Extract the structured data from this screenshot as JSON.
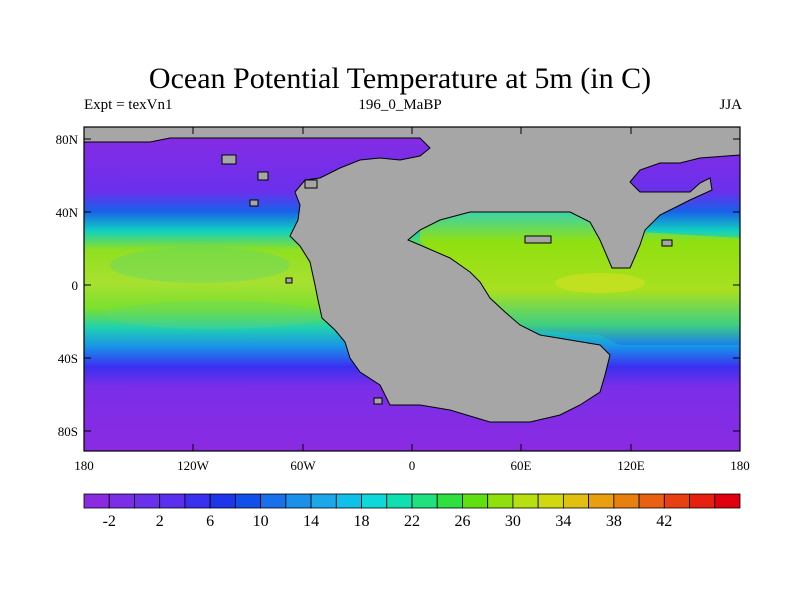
{
  "title": "Ocean Potential Temperature at 5m (in C)",
  "subtitle_left": "Expt = texVn1",
  "subtitle_center": "196_0_MaBP",
  "subtitle_right": "JJA",
  "lat_ticks": [
    "80N",
    "40N",
    "0",
    "40S",
    "80S"
  ],
  "lon_ticks": [
    "180",
    "120W",
    "60W",
    "0",
    "60E",
    "120E",
    "180"
  ],
  "colorbar": {
    "labels": [
      "-2",
      "2",
      "6",
      "10",
      "14",
      "18",
      "22",
      "26",
      "30",
      "34",
      "38",
      "42"
    ],
    "colors": [
      "#8a2be2",
      "#7a2ee8",
      "#6a30ec",
      "#5a30ee",
      "#3a30f0",
      "#1f35e8",
      "#1050e8",
      "#1a70ea",
      "#1a90ea",
      "#1aa8ea",
      "#10c0e8",
      "#10d8d8",
      "#10e0b0",
      "#20e080",
      "#30e040",
      "#60e010",
      "#90e010",
      "#b8e010",
      "#d0d810",
      "#e0c010",
      "#e8a010",
      "#e88010",
      "#e86010",
      "#e84010",
      "#e82010",
      "#e00010"
    ]
  },
  "legend_colors": {
    "land": "#a6a6a6",
    "cold": "#8a2be2",
    "warm": "#a8e02a"
  }
}
